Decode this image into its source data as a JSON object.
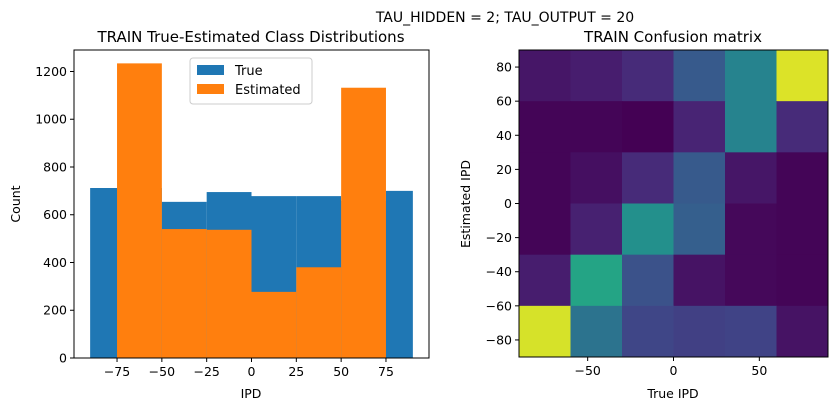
{
  "suptitle": "TAU_HIDDEN = 2; TAU_OUTPUT = 20",
  "chart_data": [
    {
      "type": "bar",
      "title": "TRAIN True-Estimated Class Distributions",
      "xlabel": "IPD",
      "ylabel": "Count",
      "xlim": [
        -99,
        99
      ],
      "ylim": [
        0,
        1290
      ],
      "xticks": [
        -75,
        -50,
        -25,
        0,
        25,
        50,
        75
      ],
      "xtick_labels": [
        "−75",
        "−50",
        "−25",
        "0",
        "25",
        "50",
        "75"
      ],
      "yticks": [
        0,
        200,
        400,
        600,
        800,
        1000,
        1200
      ],
      "bin_edges": [
        -90,
        -75,
        -50,
        -25,
        0,
        25,
        50,
        75,
        90
      ],
      "legend": {
        "location": "upper center"
      },
      "series": [
        {
          "name": "True",
          "color": "#1f77b4",
          "values": [
            712,
            712,
            654,
            695,
            678,
            678,
            658,
            700
          ]
        },
        {
          "name": "Estimated",
          "color": "#ff7f0e",
          "values": [
            0,
            1234,
            540,
            537,
            277,
            380,
            1132,
            0
          ]
        }
      ]
    },
    {
      "type": "heatmap",
      "title": "TRAIN Confusion matrix",
      "xlabel": "True IPD",
      "ylabel": "Estimated IPD",
      "xlim": [
        -90,
        90
      ],
      "ylim": [
        -90,
        90
      ],
      "xticks": [
        -50,
        0,
        50
      ],
      "xtick_labels": [
        "−50",
        "0",
        "50"
      ],
      "yticks": [
        -80,
        -60,
        -40,
        -20,
        0,
        20,
        40,
        60,
        80
      ],
      "ytick_labels": [
        "−80",
        "−60",
        "−40",
        "−20",
        "0",
        "20",
        "40",
        "60",
        "80"
      ],
      "bin_edges": [
        -90,
        -60,
        -30,
        0,
        30,
        60,
        90
      ],
      "colormap": "viridis",
      "rows_top_to_bottom": [
        [
          0.06,
          0.08,
          0.12,
          0.28,
          0.45,
          0.95
        ],
        [
          0.01,
          0.01,
          0.0,
          0.1,
          0.45,
          0.12
        ],
        [
          0.01,
          0.04,
          0.12,
          0.28,
          0.06,
          0.01
        ],
        [
          0.01,
          0.09,
          0.5,
          0.3,
          0.02,
          0.01
        ],
        [
          0.08,
          0.58,
          0.25,
          0.05,
          0.02,
          0.01
        ],
        [
          0.94,
          0.38,
          0.21,
          0.19,
          0.2,
          0.05
        ]
      ]
    }
  ]
}
